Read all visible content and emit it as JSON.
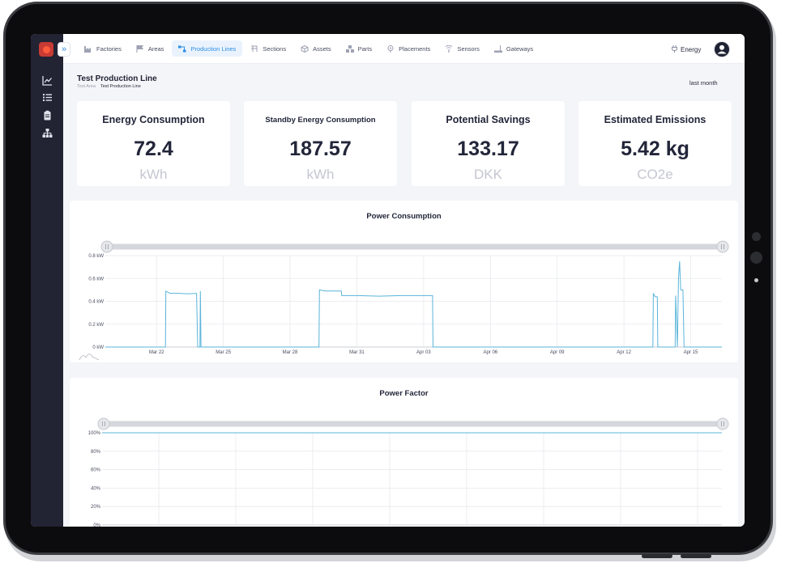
{
  "nav": {
    "items": [
      {
        "label": "Factories",
        "icon": "factory-icon",
        "active": false
      },
      {
        "label": "Areas",
        "icon": "flag-icon",
        "active": false
      },
      {
        "label": "Production Lines",
        "icon": "production-line-icon",
        "active": true
      },
      {
        "label": "Sections",
        "icon": "section-icon",
        "active": false
      },
      {
        "label": "Assets",
        "icon": "asset-icon",
        "active": false
      },
      {
        "label": "Parts",
        "icon": "parts-icon",
        "active": false
      },
      {
        "label": "Placements",
        "icon": "placement-icon",
        "active": false
      },
      {
        "label": "Sensors",
        "icon": "sensor-icon",
        "active": false
      },
      {
        "label": "Gateways",
        "icon": "gateway-icon",
        "active": false
      }
    ],
    "energy_label": "Energy"
  },
  "header": {
    "title": "Test Production Line",
    "breadcrumb": [
      "Test Area",
      "Test Production Line"
    ],
    "range": "last month"
  },
  "cards": [
    {
      "title": "Energy Consumption",
      "value": "72.4",
      "unit": "kWh"
    },
    {
      "title": "Standby Energy Consumption",
      "value": "187.57",
      "unit": "kWh"
    },
    {
      "title": "Potential Savings",
      "value": "133.17",
      "unit": "DKK"
    },
    {
      "title": "Estimated Emissions",
      "value": "5.42 kg",
      "unit": "CO2e"
    }
  ],
  "colors": {
    "accent": "#2f8de4",
    "series": "#5ab4d9",
    "sidebar": "#222333",
    "logo": "#c83a34"
  },
  "chart_data": [
    {
      "type": "line",
      "title": "Power Consumption",
      "ylabel": "",
      "y_ticks": [
        "0 kW",
        "0.2 kW",
        "0.4 kW",
        "0.6 kW",
        "0.8 kW"
      ],
      "ylim": [
        0,
        0.8
      ],
      "x_ticks": [
        "Mar 22",
        "Mar 25",
        "Mar 28",
        "Mar 31",
        "Apr 03",
        "Apr 06",
        "Apr 09",
        "Apr 12",
        "Apr 15"
      ],
      "x_tick_days": [
        1,
        4,
        7,
        10,
        13,
        16,
        19,
        22,
        25
      ],
      "xlim_days": [
        -1.3,
        26.4
      ],
      "grid": true,
      "series": [
        {
          "points": [
            [
              -1.3,
              0
            ],
            [
              1.4,
              0
            ],
            [
              1.42,
              0.49
            ],
            [
              1.6,
              0.47
            ],
            [
              2.0,
              0.47
            ],
            [
              2.4,
              0.465
            ],
            [
              2.8,
              0.47
            ],
            [
              2.85,
              0
            ],
            [
              2.95,
              0
            ],
            [
              2.97,
              0.49
            ],
            [
              3.0,
              0
            ],
            [
              8.3,
              0
            ],
            [
              8.32,
              0.5
            ],
            [
              8.6,
              0.49
            ],
            [
              9.0,
              0.49
            ],
            [
              9.3,
              0.49
            ],
            [
              9.32,
              0.45
            ],
            [
              10.0,
              0.45
            ],
            [
              11.0,
              0.445
            ],
            [
              12.0,
              0.45
            ],
            [
              13.0,
              0.45
            ],
            [
              13.4,
              0.45
            ],
            [
              13.42,
              0
            ],
            [
              23.3,
              0
            ],
            [
              23.32,
              0.47
            ],
            [
              23.4,
              0.44
            ],
            [
              23.5,
              0.44
            ],
            [
              23.52,
              0
            ],
            [
              24.3,
              0
            ],
            [
              24.32,
              0.45
            ],
            [
              24.4,
              0
            ],
            [
              24.45,
              0.6
            ],
            [
              24.5,
              0.75
            ],
            [
              24.55,
              0.5
            ],
            [
              24.65,
              0.5
            ],
            [
              24.7,
              0
            ],
            [
              26.4,
              0
            ]
          ]
        }
      ]
    },
    {
      "type": "line",
      "title": "Power Factor",
      "ylabel": "",
      "y_ticks": [
        "0%",
        "20%",
        "40%",
        "60%",
        "80%",
        "100%"
      ],
      "ylim": [
        0,
        100
      ],
      "grid": true,
      "series": [
        {
          "points": [
            [
              0,
              100
            ],
            [
              1,
              100
            ]
          ]
        }
      ]
    }
  ]
}
